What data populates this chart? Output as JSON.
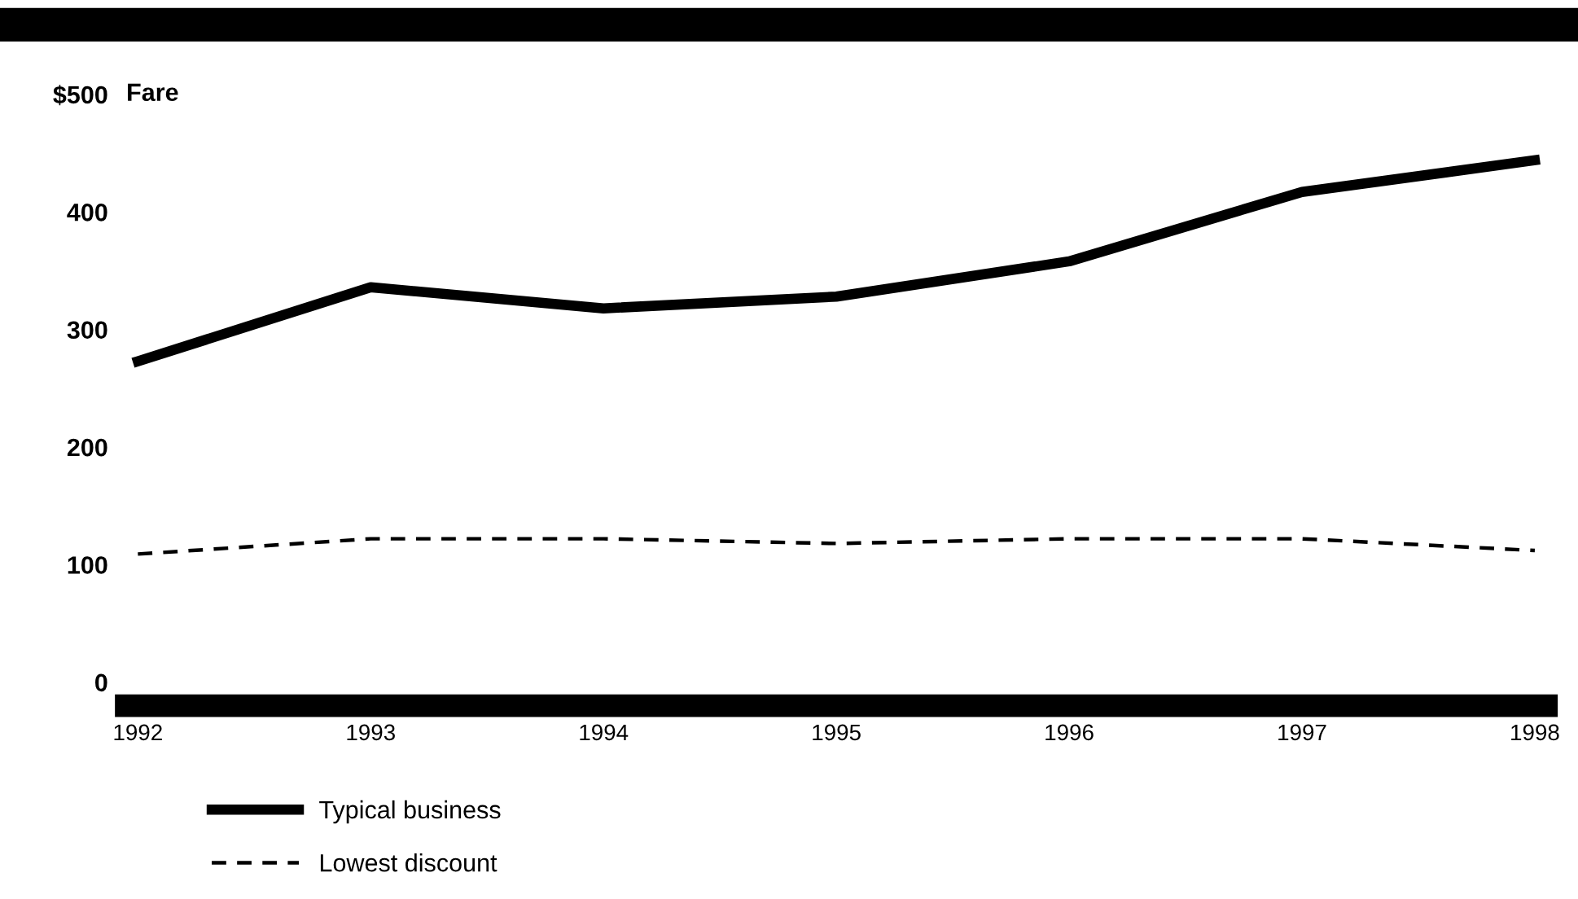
{
  "chart_data": {
    "type": "line",
    "ylabel": "Fare",
    "x": [
      1992,
      1993,
      1994,
      1995,
      1996,
      1997,
      1998
    ],
    "xlim": [
      1991.95,
      1998.05
    ],
    "xticks": [
      1992,
      1993,
      1994,
      1995,
      1996,
      1997,
      1998
    ],
    "ylim": [
      -20,
      500
    ],
    "yticks": [
      0,
      100,
      200,
      300,
      400,
      {
        "value": 500,
        "label": "$500"
      }
    ],
    "series": [
      {
        "name": "Typical business",
        "color": "#000000",
        "line_style": "solid",
        "values": [
          273,
          336,
          318,
          328,
          358,
          417,
          444
        ]
      },
      {
        "name": "Lowest discount",
        "color": "#000000",
        "line_style": "dashed",
        "values": [
          109,
          122,
          122,
          118,
          122,
          122,
          112
        ]
      }
    ],
    "grid": false,
    "legend": "bottom left",
    "marker": "none"
  }
}
